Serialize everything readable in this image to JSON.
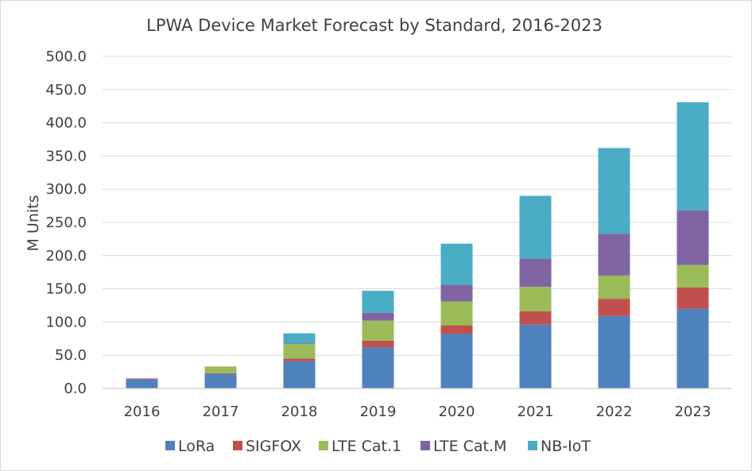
{
  "chart_data": {
    "type": "bar",
    "stacked": true,
    "title": "LPWA Device Market Forecast by Standard, 2016-2023",
    "xlabel": "",
    "ylabel": "M Units",
    "ylim": [
      0,
      500
    ],
    "yticks": [
      "0.0",
      "50.0",
      "100.0",
      "150.0",
      "200.0",
      "250.0",
      "300.0",
      "350.0",
      "400.0",
      "450.0",
      "500.0"
    ],
    "grid": true,
    "legend_position": "bottom",
    "categories": [
      "2016",
      "2017",
      "2018",
      "2019",
      "2020",
      "2021",
      "2022",
      "2023"
    ],
    "series": [
      {
        "name": "LoRa",
        "color": "#4f81bd",
        "values": [
          14,
          22,
          41,
          62,
          82,
          96,
          109,
          120
        ]
      },
      {
        "name": "SIGFOX",
        "color": "#c0504d",
        "values": [
          1,
          1,
          4,
          10,
          13,
          20,
          26,
          32
        ]
      },
      {
        "name": "LTE Cat.1",
        "color": "#9bbb59",
        "values": [
          0,
          10,
          22,
          30,
          36,
          37,
          35,
          34
        ]
      },
      {
        "name": "LTE Cat.M",
        "color": "#8064a2",
        "values": [
          0,
          0,
          1,
          12,
          25,
          42,
          63,
          82
        ]
      },
      {
        "name": "NB-IoT",
        "color": "#4bacc6",
        "values": [
          0,
          0,
          15,
          33,
          62,
          95,
          129,
          163
        ]
      }
    ]
  }
}
